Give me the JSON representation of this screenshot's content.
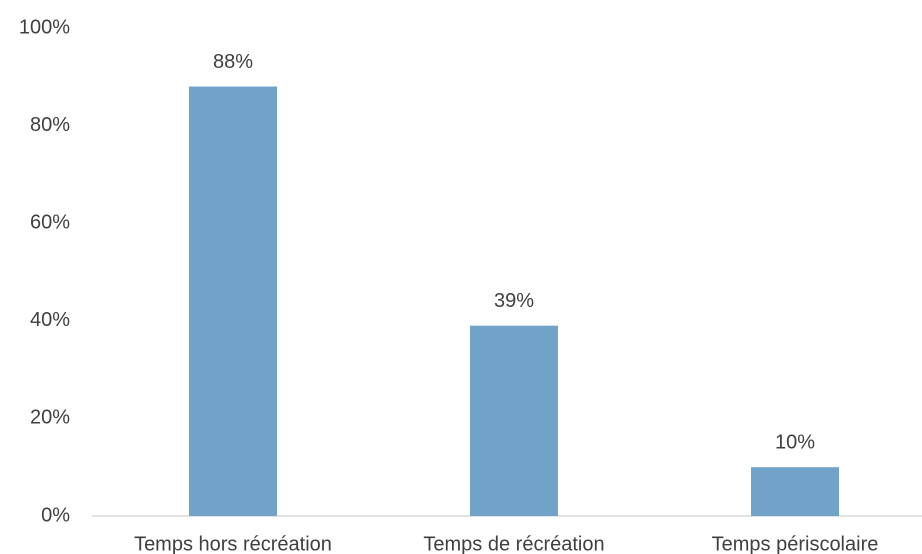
{
  "chart_data": {
    "type": "bar",
    "categories": [
      "Temps hors récréation",
      "Temps de récréation",
      "Temps périscolaire"
    ],
    "values": [
      88,
      39,
      10
    ],
    "value_labels": [
      "88%",
      "39%",
      "10%"
    ],
    "color": "#71a3c9",
    "ylim": [
      0,
      100
    ],
    "yticks": [
      {
        "value": 0,
        "label": "0%"
      },
      {
        "value": 20,
        "label": "20%"
      },
      {
        "value": 40,
        "label": "40%"
      },
      {
        "value": 60,
        "label": "60%"
      },
      {
        "value": 80,
        "label": "80%"
      },
      {
        "value": 100,
        "label": "100%"
      }
    ],
    "grid": false
  }
}
